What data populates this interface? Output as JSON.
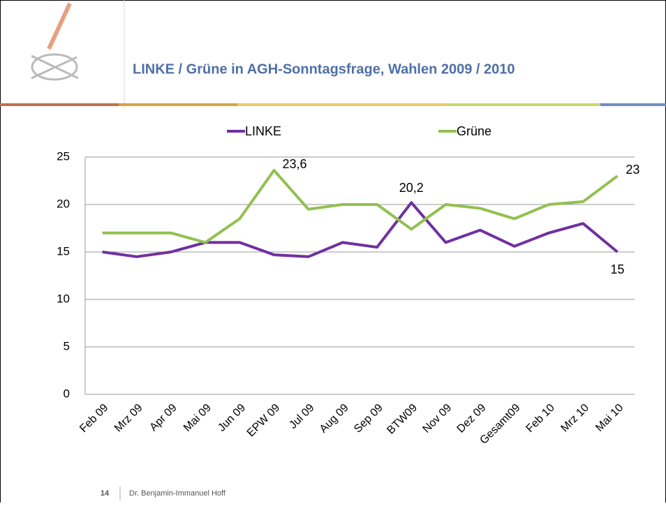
{
  "chart_data": {
    "type": "line",
    "title": "LINKE / Grüne in AGH-Sonntagsfrage, Wahlen 2009 / 2010",
    "categories": [
      "Feb 09",
      "Mrz 09",
      "Apr 09",
      "Mai 09",
      "Jun 09",
      "EPW 09",
      "Jul 09",
      "Aug 09",
      "Sep 09",
      "BTW09",
      "Nov 09",
      "Dez 09",
      "Gesamt09",
      "Feb 10",
      "Mrz 10",
      "Mai 10"
    ],
    "series": [
      {
        "name": "LINKE",
        "color": "#7030a0",
        "values": [
          15,
          14.5,
          15,
          16,
          16,
          14.7,
          14.5,
          16,
          15.5,
          20.2,
          16,
          17.3,
          15.6,
          17,
          18,
          15
        ],
        "value_labels": [
          null,
          null,
          null,
          null,
          null,
          null,
          null,
          null,
          null,
          "20,2",
          null,
          null,
          null,
          null,
          null,
          "15"
        ]
      },
      {
        "name": "Grüne",
        "color": "#92c050",
        "values": [
          17,
          17,
          17,
          16,
          18.5,
          23.6,
          19.5,
          20,
          20,
          17.4,
          20,
          19.6,
          18.5,
          20,
          20.3,
          23
        ],
        "value_labels": [
          null,
          null,
          null,
          null,
          null,
          "23,6",
          null,
          null,
          null,
          null,
          null,
          null,
          null,
          null,
          null,
          "23"
        ]
      }
    ],
    "ylim": [
      0,
      25
    ],
    "yticks": [
      0,
      5,
      10,
      15,
      20,
      25
    ],
    "grid": true
  },
  "footer": {
    "page_number": 14,
    "author": "Dr. Benjamin-Immanuel Hoff"
  }
}
